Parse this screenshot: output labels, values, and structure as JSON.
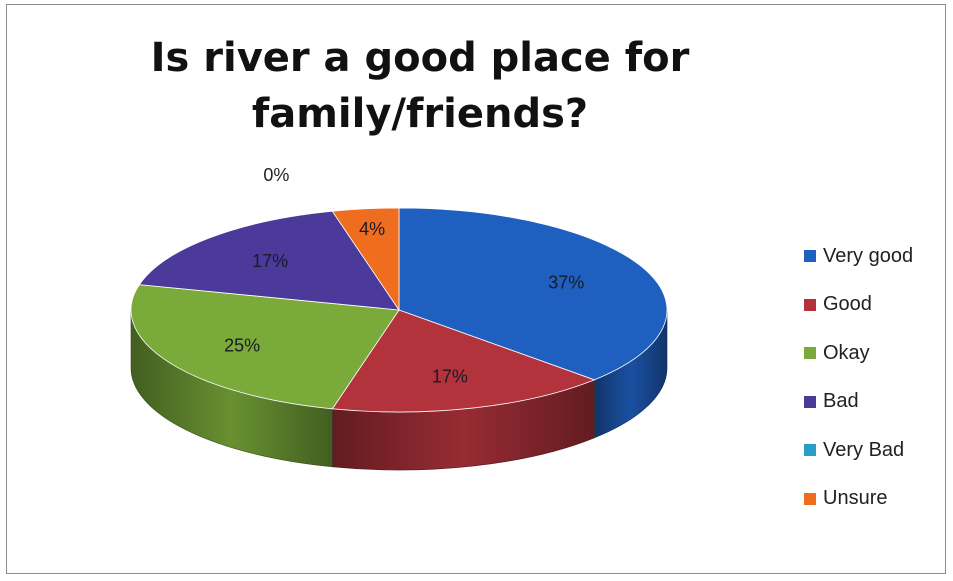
{
  "chart_data": {
    "type": "pie",
    "title_lines": [
      "Is river a good place for",
      "family/friends?"
    ],
    "categories": [
      "Very good",
      "Good",
      "Okay",
      "Bad",
      "Very Bad",
      "Unsure"
    ],
    "values": [
      37,
      17,
      25,
      17,
      0,
      4
    ],
    "data_labels": [
      "37%",
      "17%",
      "25%",
      "17%",
      "0%",
      "4%"
    ],
    "colors": [
      "#1f5fbf",
      "#b3333c",
      "#7aab3a",
      "#4b3a9a",
      "#2a9ec4",
      "#ef6d1f"
    ],
    "legend_position": "right",
    "style": "3d"
  }
}
